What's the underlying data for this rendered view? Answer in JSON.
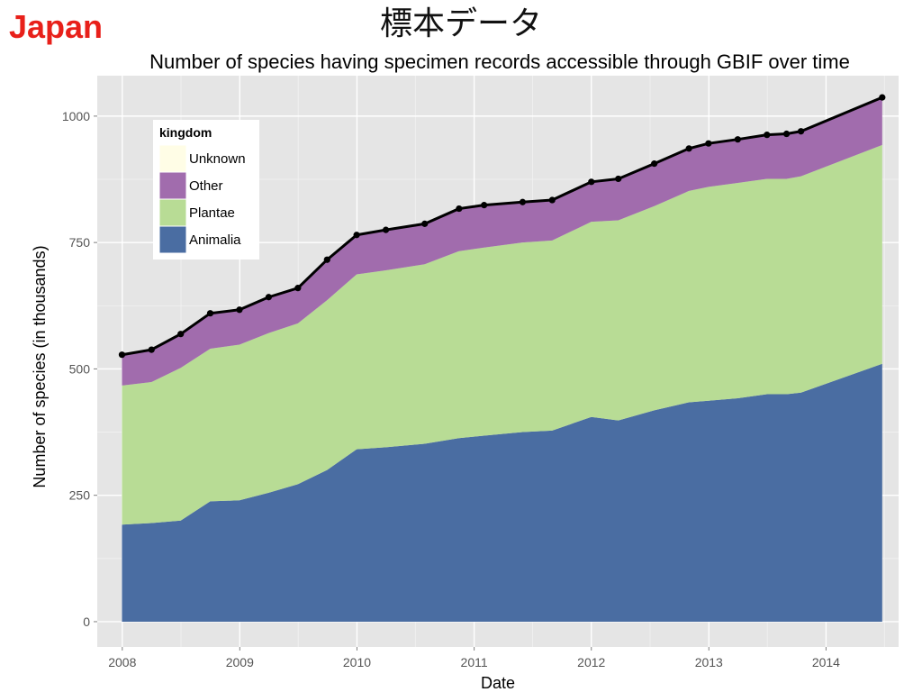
{
  "page": {
    "country": "Japan",
    "heading": "標本データ"
  },
  "chart_data": {
    "type": "area",
    "stacked": true,
    "title": "Number of species having specimen records accessible through GBIF over time",
    "xlabel": "Date",
    "ylabel": "Number of species (in thousands)",
    "x_ticks": [
      "2008",
      "2009",
      "2010",
      "2011",
      "2012",
      "2013",
      "2014"
    ],
    "y_ticks": [
      0,
      250,
      500,
      750,
      1000
    ],
    "xlim": [
      "2007-10-15",
      "2014-08-15"
    ],
    "ylim": [
      -50,
      1080
    ],
    "grid": true,
    "legend": {
      "title": "kingdom",
      "position": "top-left",
      "entries": [
        "Unknown",
        "Other",
        "Plantae",
        "Animalia"
      ]
    },
    "colors": {
      "Animalia": "#4a6da2",
      "Plantae": "#b8dc95",
      "Other": "#a16cad",
      "Unknown": "#fffde6",
      "total_line": "#000000",
      "panel": "#e5e5e5",
      "grid": "#ffffff"
    },
    "x": [
      "2007-12-31",
      "2008-04-01",
      "2008-07-01",
      "2008-10-01",
      "2008-12-31",
      "2009-04-01",
      "2009-07-01",
      "2009-09-30",
      "2009-12-31",
      "2010-04-01",
      "2010-07-31",
      "2010-11-15",
      "2011-02-01",
      "2011-06-01",
      "2011-09-01",
      "2012-01-01",
      "2012-03-25",
      "2012-07-15",
      "2012-10-31",
      "2012-12-31",
      "2013-04-01",
      "2013-07-01",
      "2013-08-31",
      "2013-10-15",
      "2014-06-25"
    ],
    "series": [
      {
        "name": "Animalia",
        "values": [
          192,
          195,
          200,
          238,
          240,
          255,
          272,
          300,
          341,
          345,
          352,
          363,
          368,
          375,
          378,
          405,
          398,
          418,
          434,
          437,
          442,
          450,
          450,
          453,
          510
        ]
      },
      {
        "name": "Plantae",
        "values": [
          275,
          279,
          302,
          302,
          308,
          316,
          318,
          336,
          346,
          350,
          355,
          370,
          372,
          375,
          376,
          386,
          396,
          404,
          418,
          423,
          426,
          426,
          426,
          428,
          433
        ]
      },
      {
        "name": "Other",
        "values": [
          61,
          64,
          67,
          70,
          69,
          71,
          70,
          80,
          78,
          80,
          80,
          84,
          84,
          80,
          80,
          79,
          82,
          84,
          84,
          86,
          86,
          87,
          89,
          89,
          94
        ]
      },
      {
        "name": "Unknown",
        "values": [
          0,
          0,
          0,
          0,
          0,
          0,
          0,
          0,
          0,
          0,
          0,
          0,
          0,
          0,
          0,
          0,
          0,
          0,
          0,
          0,
          0,
          0,
          0,
          0,
          0
        ]
      }
    ],
    "total": [
      528,
      538,
      569,
      610,
      617,
      642,
      660,
      716,
      765,
      775,
      787,
      817,
      824,
      830,
      834,
      870,
      876,
      906,
      936,
      946,
      954,
      963,
      965,
      970,
      1037
    ]
  }
}
